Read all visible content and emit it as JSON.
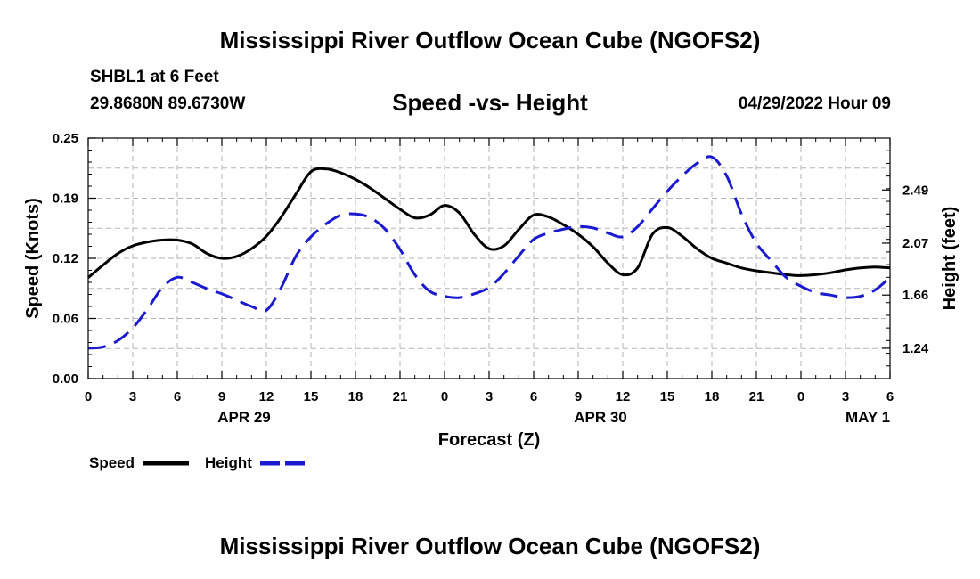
{
  "header": {
    "title": "Mississippi River Outflow Ocean Cube (NGOFS2)",
    "station": "SHBL1 at 6 Feet",
    "coords": "29.8680N  89.6730W",
    "subtitle": "Speed -vs- Height",
    "datetime": "04/29/2022 Hour 09"
  },
  "footer": {
    "title": "Mississippi River Outflow Ocean Cube (NGOFS2)"
  },
  "chart_data": {
    "type": "line",
    "title": "Speed -vs- Height",
    "xlabel": "Forecast (Z)",
    "ylabel": "Speed (Knots)",
    "y2label": "Height (feet)",
    "grid": true,
    "xlim": [
      0,
      54
    ],
    "ylim": [
      0,
      0.25
    ],
    "y2lim": [
      1.0,
      2.9
    ],
    "x_tick_values": [
      0,
      3,
      6,
      9,
      12,
      15,
      18,
      21,
      24,
      27,
      30,
      33,
      36,
      39,
      42,
      45,
      48,
      51,
      54
    ],
    "x_tick_labels": [
      "0",
      "3",
      "6",
      "9",
      "12",
      "15",
      "18",
      "21",
      "0",
      "3",
      "6",
      "9",
      "12",
      "15",
      "18",
      "21",
      "0",
      "3",
      "6"
    ],
    "y_ticks": [
      {
        "value": 0.0,
        "label": "0.00"
      },
      {
        "value": 0.0625,
        "label": "0.06"
      },
      {
        "value": 0.125,
        "label": "0.12"
      },
      {
        "value": 0.1875,
        "label": "0.19"
      },
      {
        "value": 0.25,
        "label": "0.25"
      }
    ],
    "y2_ticks": [
      {
        "value": 1.24,
        "label": "1.24"
      },
      {
        "value": 1.66,
        "label": "1.66"
      },
      {
        "value": 2.07,
        "label": "2.07"
      },
      {
        "value": 2.49,
        "label": "2.49"
      }
    ],
    "date_labels": [
      {
        "at": 10.5,
        "label": "APR 29"
      },
      {
        "at": 34.5,
        "label": "APR 30"
      },
      {
        "at": 52.5,
        "label": "MAY 1"
      }
    ],
    "legend_position": "bottom-left",
    "series": [
      {
        "name": "Speed",
        "axis": "left",
        "color": "#000000",
        "dash": "solid",
        "x": [
          0,
          1,
          2,
          3,
          4,
          5,
          6,
          7,
          8,
          9,
          10,
          11,
          12,
          13,
          14,
          15,
          16,
          17,
          18,
          19,
          20,
          21,
          22,
          23,
          24,
          25,
          26,
          27,
          28,
          29,
          30,
          31,
          32,
          33,
          34,
          35,
          36,
          37,
          38,
          39,
          40,
          41,
          42,
          43,
          44,
          45,
          46,
          47,
          48,
          49,
          50,
          51,
          52,
          53,
          54
        ],
        "values": [
          0.105,
          0.118,
          0.13,
          0.138,
          0.142,
          0.144,
          0.144,
          0.14,
          0.13,
          0.125,
          0.127,
          0.135,
          0.148,
          0.168,
          0.192,
          0.215,
          0.218,
          0.214,
          0.207,
          0.198,
          0.187,
          0.176,
          0.167,
          0.17,
          0.18,
          0.172,
          0.15,
          0.135,
          0.138,
          0.155,
          0.17,
          0.168,
          0.16,
          0.15,
          0.137,
          0.12,
          0.108,
          0.115,
          0.15,
          0.157,
          0.148,
          0.135,
          0.125,
          0.12,
          0.115,
          0.112,
          0.11,
          0.108,
          0.107,
          0.108,
          0.11,
          0.113,
          0.115,
          0.116,
          0.115
        ]
      },
      {
        "name": "Height",
        "axis": "right",
        "color": "#1a1ad0",
        "dash": "dashed",
        "x": [
          0,
          1,
          2,
          3,
          4,
          5,
          6,
          7,
          8,
          9,
          10,
          11,
          12,
          13,
          14,
          15,
          16,
          17,
          18,
          19,
          20,
          21,
          22,
          23,
          24,
          25,
          26,
          27,
          28,
          29,
          30,
          31,
          32,
          33,
          34,
          35,
          36,
          37,
          38,
          39,
          40,
          41,
          42,
          43,
          44,
          45,
          46,
          47,
          48,
          49,
          50,
          51,
          52,
          53,
          54
        ],
        "values": [
          1.24,
          1.25,
          1.3,
          1.4,
          1.55,
          1.72,
          1.8,
          1.76,
          1.71,
          1.67,
          1.62,
          1.57,
          1.54,
          1.72,
          1.97,
          2.12,
          2.22,
          2.29,
          2.3,
          2.27,
          2.18,
          2.02,
          1.82,
          1.69,
          1.65,
          1.64,
          1.67,
          1.72,
          1.83,
          1.97,
          2.1,
          2.15,
          2.18,
          2.2,
          2.19,
          2.15,
          2.12,
          2.2,
          2.34,
          2.48,
          2.6,
          2.7,
          2.75,
          2.6,
          2.3,
          2.07,
          1.93,
          1.8,
          1.73,
          1.68,
          1.66,
          1.64,
          1.65,
          1.7,
          1.8
        ]
      }
    ]
  }
}
